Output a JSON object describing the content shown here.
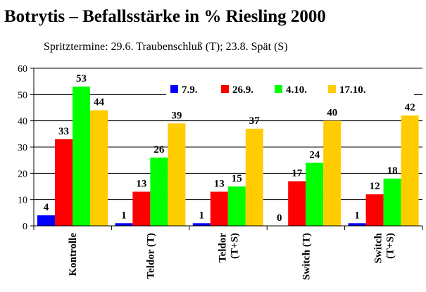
{
  "title": "Botrytis – Befallsstärke in % Riesling 2000",
  "subtitle": "Spritztermine: 29.6. Traubenschluß (T); 23.8. Spät (S)",
  "chart_data": {
    "type": "bar",
    "title": "Botrytis – Befallsstärke in % Riesling 2000",
    "subtitle": "Spritztermine: 29.6. Traubenschluß (T); 23.8. Spät (S)",
    "categories": [
      [
        "Kontrolle"
      ],
      [
        "Teldor (T)"
      ],
      [
        "Teldor",
        "(T+S)"
      ],
      [
        "Switch (T)"
      ],
      [
        "Switch",
        "(T+S)"
      ]
    ],
    "series": [
      {
        "name": "7.9.",
        "color": "#0000ff",
        "values": [
          4,
          1,
          1,
          0,
          1
        ]
      },
      {
        "name": "26.9.",
        "color": "#ff0000",
        "values": [
          33,
          13,
          13,
          17,
          12
        ]
      },
      {
        "name": "4.10.",
        "color": "#00ff00",
        "values": [
          53,
          26,
          15,
          24,
          18
        ]
      },
      {
        "name": "17.10.",
        "color": "#ffcc00",
        "values": [
          44,
          39,
          37,
          40,
          42
        ]
      }
    ],
    "ylim": [
      0,
      60
    ],
    "yticks": [
      0,
      10,
      20,
      30,
      40,
      50,
      60
    ],
    "grid": true,
    "legend": "top-right, inside plot"
  }
}
